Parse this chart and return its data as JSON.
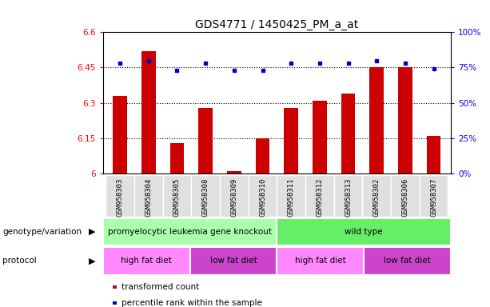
{
  "title": "GDS4771 / 1450425_PM_a_at",
  "samples": [
    "GSM958303",
    "GSM958304",
    "GSM958305",
    "GSM958308",
    "GSM958309",
    "GSM958310",
    "GSM958311",
    "GSM958312",
    "GSM958313",
    "GSM958302",
    "GSM958306",
    "GSM958307"
  ],
  "red_values": [
    6.33,
    6.52,
    6.13,
    6.28,
    6.01,
    6.15,
    6.28,
    6.31,
    6.34,
    6.45,
    6.45,
    6.16
  ],
  "blue_values": [
    78,
    80,
    73,
    78,
    73,
    73,
    78,
    78,
    78,
    80,
    78,
    74
  ],
  "ylim_left": [
    6.0,
    6.6
  ],
  "ylim_right": [
    0,
    100
  ],
  "yticks_left": [
    6.0,
    6.15,
    6.3,
    6.45,
    6.6
  ],
  "yticks_right": [
    0,
    25,
    50,
    75,
    100
  ],
  "ytick_labels_left": [
    "6",
    "6.15",
    "6.3",
    "6.45",
    "6.6"
  ],
  "ytick_labels_right": [
    "0%",
    "25%",
    "50%",
    "75%",
    "100%"
  ],
  "hlines": [
    6.15,
    6.3,
    6.45
  ],
  "bar_color": "#cc0000",
  "dot_color": "#0000cc",
  "bar_width": 0.5,
  "genotype_groups": [
    {
      "label": "promyelocytic leukemia gene knockout",
      "start": 0,
      "end": 6,
      "color": "#aaffaa"
    },
    {
      "label": "wild type",
      "start": 6,
      "end": 12,
      "color": "#66ee66"
    }
  ],
  "protocol_groups": [
    {
      "label": "high fat diet",
      "start": 0,
      "end": 3,
      "color": "#ff88ff"
    },
    {
      "label": "low fat diet",
      "start": 3,
      "end": 6,
      "color": "#cc44cc"
    },
    {
      "label": "high fat diet",
      "start": 6,
      "end": 9,
      "color": "#ff88ff"
    },
    {
      "label": "low fat diet",
      "start": 9,
      "end": 12,
      "color": "#cc44cc"
    }
  ],
  "legend_items": [
    {
      "label": "transformed count",
      "color": "#cc0000"
    },
    {
      "label": "percentile rank within the sample",
      "color": "#0000cc"
    }
  ],
  "annotation_label_genotype": "genotype/variation",
  "annotation_label_protocol": "protocol",
  "bg_color": "#ffffff",
  "plot_bg_color": "#ffffff",
  "title_fontsize": 10,
  "tick_fontsize": 7.5,
  "sample_fontsize": 6.5,
  "label_fontsize": 8
}
